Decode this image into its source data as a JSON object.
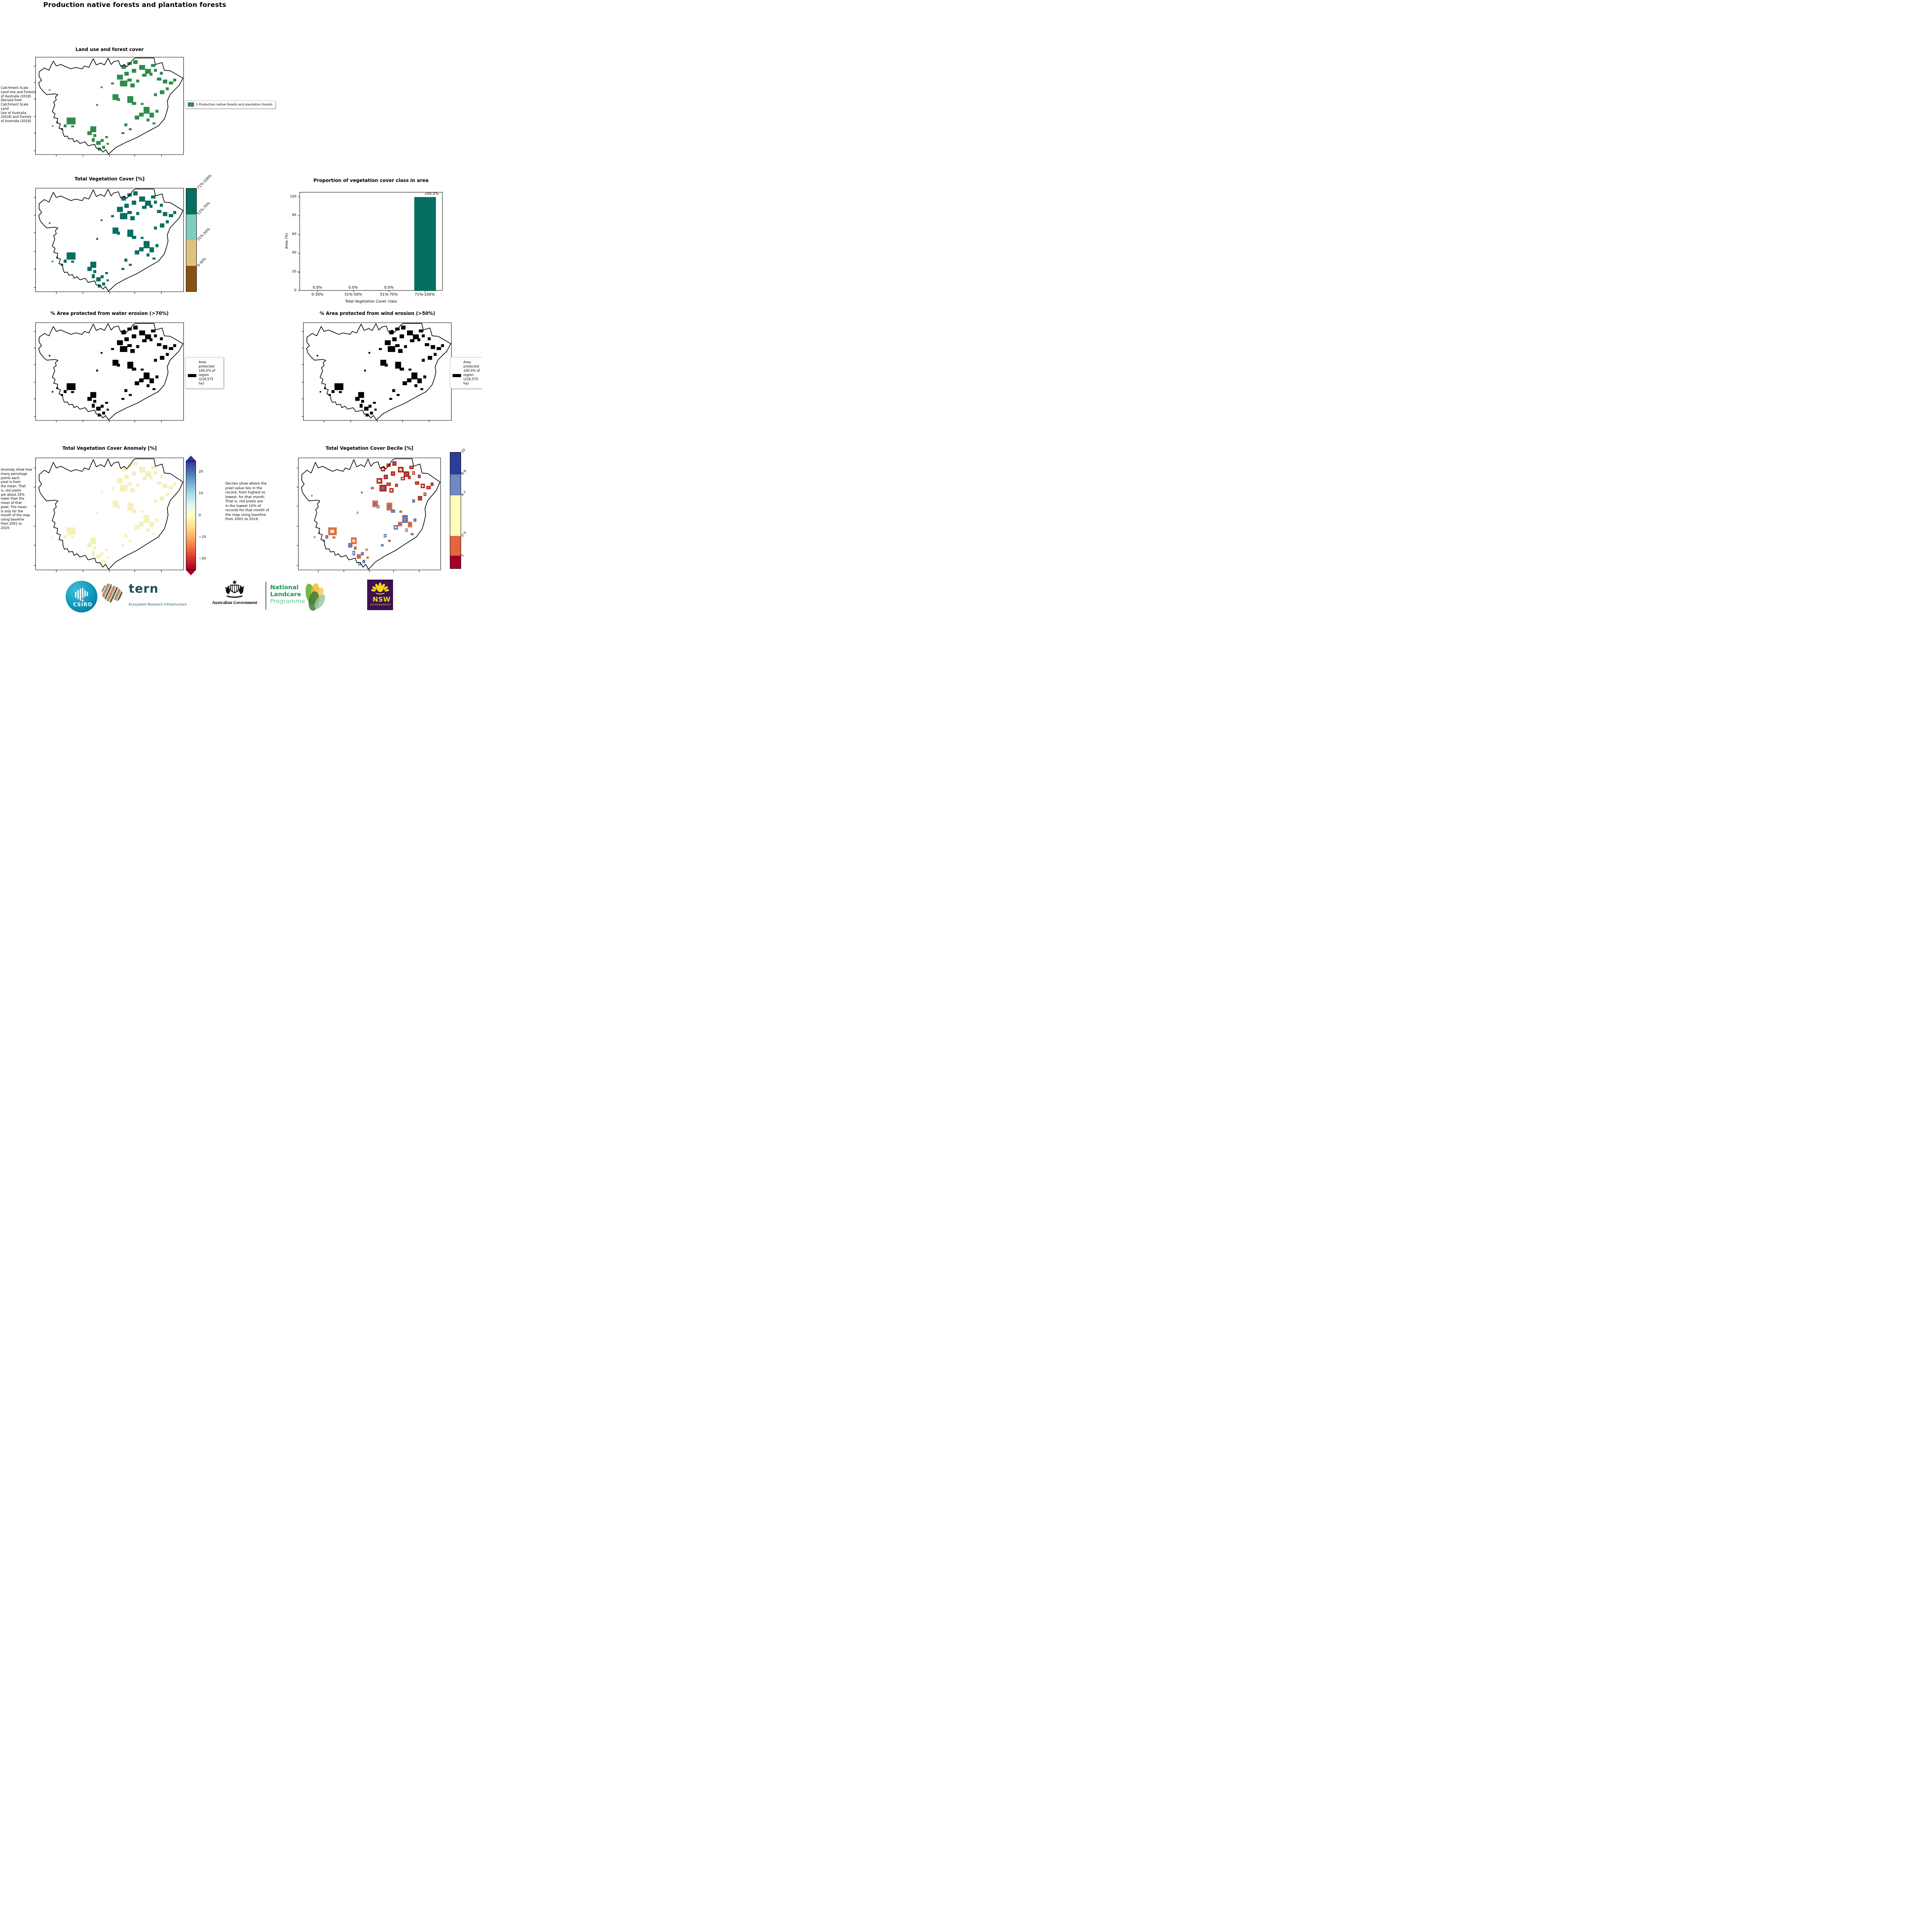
{
  "page": {
    "title": "Production native forests and plantation forests"
  },
  "panels": {
    "land_use": {
      "title": "Land use and forest cover",
      "side_note": "Catchment Scale\nLand Use and Forests\nof Australia (2018)\nDerived from\nCatchment Scale Land\nUse of Australia\n(2018) and Forests\nof Australia (2018)",
      "legend_label": "1 Production native forests and plantation forests",
      "legend_color": "#2e8b4d"
    },
    "tvc": {
      "title": "Total Vegetation Cover [%]",
      "colorbar_classes": [
        {
          "label": "71%-100%",
          "color": "#076e62",
          "pct": 25
        },
        {
          "label": "51%-70%",
          "color": "#7fcdbb",
          "pct": 25
        },
        {
          "label": "31%-50%",
          "color": "#dfc27d",
          "pct": 25
        },
        {
          "label": "0-30%",
          "color": "#8a5210",
          "pct": 25
        }
      ]
    },
    "water": {
      "title": "% Area protected from water erosion (>70%)",
      "legend_text": "Area\nprotected\n100.0% of\nregion\n(218,575\nha)"
    },
    "wind": {
      "title": "% Area protected from wind erosion (>50%)",
      "legend_text": "Area\nprotected\n100.0% of\nregion\n(218,575\nha)"
    },
    "anomaly": {
      "title": "Total Vegetation Cover Anomaly [%]",
      "side_note": "Anomaly show how\nmany percetage\npoints each\npixel is from\nthe mean. That\nis, red pixels\nare about 20%\nlower than the\nmean of that\npixel. The mean\nis only for the\nmonth of the map\nusing baseline\nfrom 2001 to\n2019.",
      "gradient_stops": [
        "#313695",
        "#4575b4",
        "#74add1",
        "#abd9e9",
        "#e0f3f8",
        "#ffffbf",
        "#fee090",
        "#fdae61",
        "#f46d43",
        "#d73027",
        "#a50026"
      ],
      "ticks": [
        {
          "label": "20",
          "pos": 10
        },
        {
          "label": "10",
          "pos": 30
        },
        {
          "label": "0",
          "pos": 50
        },
        {
          "label": "−10",
          "pos": 70
        },
        {
          "label": "−20",
          "pos": 90
        }
      ]
    },
    "decile": {
      "title": "Total Vegetation Cover Decile [%]",
      "side_note": "Deciles show where the\npixel value lies in the\nrecord, from highest to\nlowest, for that month.\nThat is, red pixels are\nin the lowest 10% of\nrecords for that month of\nthe map using baseline\nfrom 2001 to 2019.",
      "colorbar_classes": [
        {
          "label": "10",
          "color": "#2d3d96",
          "pct": 19
        },
        {
          "label": "8-9",
          "color": "#7286bf",
          "pct": 18
        },
        {
          "label": "4-7",
          "color": "#fdfdbe",
          "pct": 35
        },
        {
          "label": "2-3",
          "color": "#e2663c",
          "pct": 17
        },
        {
          "label": "1",
          "color": "#a50026",
          "pct": 11
        }
      ]
    }
  },
  "chart_data": {
    "type": "bar",
    "title": "Proportion of vegetation cover class in area",
    "categories": [
      "0-30%",
      "31%-50%",
      "51%-70%",
      "71%-100%"
    ],
    "values": [
      0.0,
      0.0,
      0.0,
      100.0
    ],
    "value_labels": [
      "0.0%",
      "0.0%",
      "0.0%",
      "100.0%"
    ],
    "xlabel": "Total Vegetation Cover class",
    "ylabel": "Area (%)",
    "ylim": [
      0,
      105
    ],
    "yticks": [
      0,
      20,
      40,
      60,
      80,
      100
    ],
    "bar_color": "#076e62",
    "grid": false,
    "legend": "none"
  },
  "map": {
    "outline": [
      [
        2.4,
        15
      ],
      [
        6,
        11
      ],
      [
        9,
        13.5
      ],
      [
        12,
        4
      ],
      [
        14,
        9
      ],
      [
        17,
        7.5
      ],
      [
        20,
        9.5
      ],
      [
        24,
        12
      ],
      [
        27,
        10.5
      ],
      [
        31.5,
        12
      ],
      [
        33,
        9
      ],
      [
        36,
        10.5
      ],
      [
        39,
        1.5
      ],
      [
        41,
        8
      ],
      [
        44,
        6
      ],
      [
        46.5,
        8
      ],
      [
        49,
        1
      ],
      [
        51,
        7.5
      ],
      [
        53,
        4.5
      ],
      [
        56,
        3.5
      ],
      [
        57.5,
        9.5
      ],
      [
        60,
        7.5
      ],
      [
        61.5,
        10
      ],
      [
        64,
        6
      ],
      [
        66,
        2
      ],
      [
        67.5,
        0.8
      ],
      [
        80,
        0.8
      ],
      [
        81,
        7.5
      ],
      [
        85.5,
        5.5
      ],
      [
        87,
        13.5
      ],
      [
        91,
        14
      ],
      [
        99.6,
        21.5
      ],
      [
        97,
        29
      ],
      [
        91,
        38
      ],
      [
        89,
        45
      ],
      [
        89.5,
        51
      ],
      [
        88.5,
        57
      ],
      [
        87,
        63.5
      ],
      [
        83,
        70.5
      ],
      [
        75,
        77
      ],
      [
        68.5,
        82.5
      ],
      [
        61,
        87.5
      ],
      [
        54,
        93
      ],
      [
        51.5,
        96.5
      ],
      [
        49.3,
        99.5
      ],
      [
        47.3,
        95
      ],
      [
        45.5,
        97.5
      ],
      [
        43.5,
        93.5
      ],
      [
        41,
        93.5
      ],
      [
        40,
        89.5
      ],
      [
        35.5,
        91
      ],
      [
        33.5,
        87
      ],
      [
        30,
        88.5
      ],
      [
        28,
        85.5
      ],
      [
        26,
        87
      ],
      [
        25,
        83.5
      ],
      [
        22.5,
        84
      ],
      [
        21.5,
        81
      ],
      [
        19.5,
        81.5
      ],
      [
        18.5,
        78
      ],
      [
        18.3,
        73.5
      ],
      [
        15.8,
        73
      ],
      [
        16.8,
        68.5
      ],
      [
        14.4,
        67.5
      ],
      [
        15,
        63
      ],
      [
        12.3,
        62
      ],
      [
        13.2,
        58
      ],
      [
        11.3,
        56
      ],
      [
        12.5,
        51
      ],
      [
        13,
        49.5
      ],
      [
        12.2,
        46
      ],
      [
        14,
        44
      ],
      [
        13.4,
        41
      ],
      [
        15.1,
        38.5
      ],
      [
        13,
        37.7
      ],
      [
        7.5,
        38.4
      ],
      [
        5.5,
        35.6
      ],
      [
        3.1,
        31.3
      ],
      [
        2.1,
        26.4
      ],
      [
        4.1,
        23.6
      ],
      [
        2.4,
        20
      ]
    ],
    "xticks": [
      14,
      32,
      50,
      67,
      85
    ],
    "yticks": [
      9,
      26,
      43,
      61,
      78,
      96
    ],
    "patches": [
      [
        58,
        8,
        3,
        4
      ],
      [
        62,
        5,
        3,
        3
      ],
      [
        66,
        3,
        3,
        4
      ],
      [
        70,
        8,
        4,
        5
      ],
      [
        74,
        12,
        4,
        5
      ],
      [
        78,
        7,
        3,
        3
      ],
      [
        72,
        17,
        3,
        3
      ],
      [
        65,
        12,
        3,
        4
      ],
      [
        60,
        15,
        3,
        4
      ],
      [
        55,
        18,
        4,
        5
      ],
      [
        57,
        24,
        5,
        6
      ],
      [
        62,
        22,
        3,
        3
      ],
      [
        64,
        27,
        3,
        4
      ],
      [
        68,
        23,
        2,
        3
      ],
      [
        77,
        16,
        2,
        3
      ],
      [
        80,
        12,
        2,
        3
      ],
      [
        84,
        15,
        2,
        3
      ],
      [
        82,
        21,
        3,
        3
      ],
      [
        86,
        23,
        3,
        4
      ],
      [
        90,
        25,
        3,
        3
      ],
      [
        93,
        22,
        2,
        3
      ],
      [
        88,
        31,
        2,
        3
      ],
      [
        84,
        34,
        3,
        4
      ],
      [
        80,
        37,
        2,
        3
      ],
      [
        51,
        26,
        2,
        2
      ],
      [
        44,
        30,
        1.2,
        1.8
      ],
      [
        52,
        38,
        4,
        6
      ],
      [
        55,
        42,
        2,
        3
      ],
      [
        62,
        40,
        4,
        7
      ],
      [
        65,
        46,
        3,
        3
      ],
      [
        41,
        48,
        1.2,
        2
      ],
      [
        73,
        51,
        4,
        7
      ],
      [
        70,
        57,
        3,
        4
      ],
      [
        67,
        60,
        3,
        4
      ],
      [
        77,
        57,
        3,
        5
      ],
      [
        81,
        54,
        2,
        3
      ],
      [
        75,
        63,
        2,
        3
      ],
      [
        79,
        67,
        2,
        2
      ],
      [
        71,
        47,
        2,
        2
      ],
      [
        60,
        68,
        2,
        3
      ],
      [
        63,
        73,
        2,
        2
      ],
      [
        58,
        77,
        2,
        2
      ],
      [
        21,
        62,
        6,
        7
      ],
      [
        19,
        69,
        2,
        3
      ],
      [
        24,
        70,
        2,
        2
      ],
      [
        17,
        73,
        1.5,
        2
      ],
      [
        14,
        66,
        1.2,
        2
      ],
      [
        11,
        70,
        1,
        1.5
      ],
      [
        37,
        71,
        4,
        6
      ],
      [
        35,
        76,
        3,
        4
      ],
      [
        39,
        79,
        2,
        3
      ],
      [
        38,
        83,
        2,
        4
      ],
      [
        41,
        86,
        3,
        4
      ],
      [
        44,
        84,
        2,
        3
      ],
      [
        47,
        81,
        2,
        2
      ],
      [
        45,
        91,
        2,
        3
      ],
      [
        48,
        88,
        1.5,
        2
      ],
      [
        42,
        93,
        2,
        3
      ],
      [
        9,
        33,
        1,
        1.5
      ]
    ],
    "patch_colors": {
      "landuse": "#2e8b4d",
      "tvc": "#076e62",
      "protect": "#000000",
      "anomaly": "#f5f0bc",
      "decile_red": "#b7281e",
      "decile_blue": "#5d76ba",
      "decile_orange": "#dd6e45",
      "decile_yellow": "#f4f0be"
    }
  },
  "footer": {
    "csiro_label": "CSIRO",
    "tern_label": "tern",
    "tern_sub": "Ecosystem Research Infrastructure",
    "aus_gov_line": "Australian Government",
    "nlp_line1": "National",
    "nlp_line2": "Landcare",
    "nlp_line3": "Programme",
    "nsw_label": "NSW",
    "nsw_sub": "GOVERNMENT"
  }
}
